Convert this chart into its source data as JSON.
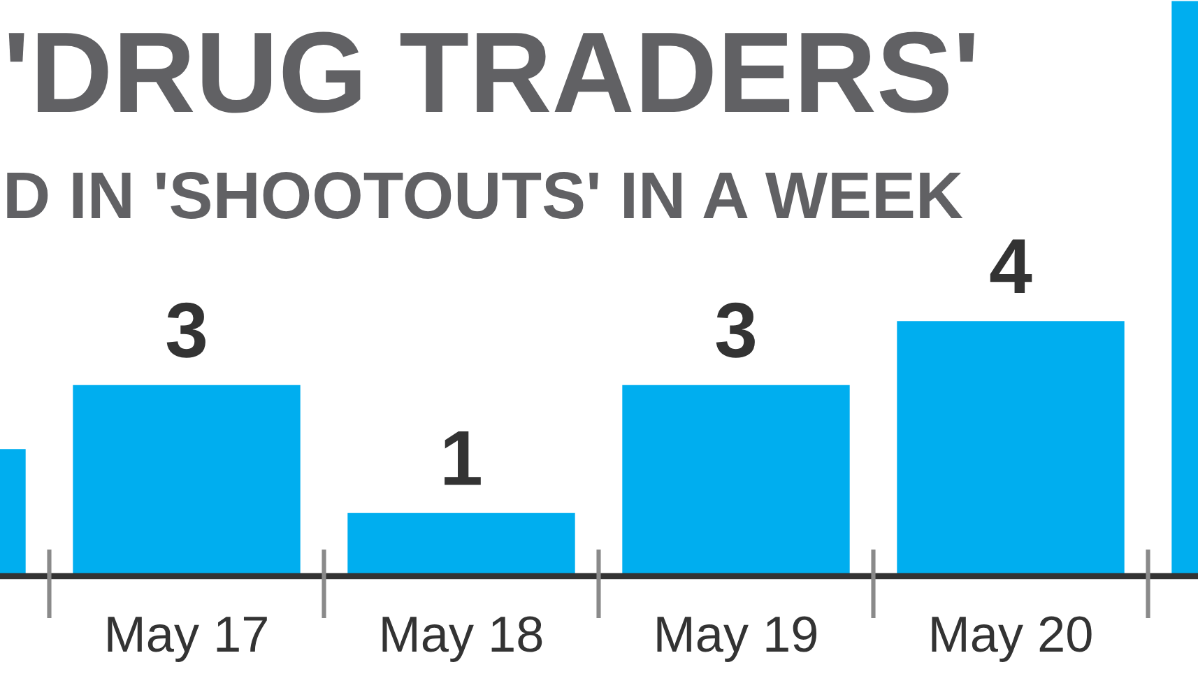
{
  "chart_data": {
    "type": "bar",
    "title": "'DRUG TRADERS'",
    "subtitle": "D IN 'SHOOTOUTS' IN A WEEK",
    "categories": [
      null,
      "May 17",
      "May 18",
      "May 19",
      "May 20",
      null
    ],
    "values": [
      2,
      3,
      1,
      3,
      4,
      9
    ],
    "value_labels": [
      null,
      "3",
      "1",
      "3",
      "4",
      null
    ],
    "color": "#00aeef"
  }
}
